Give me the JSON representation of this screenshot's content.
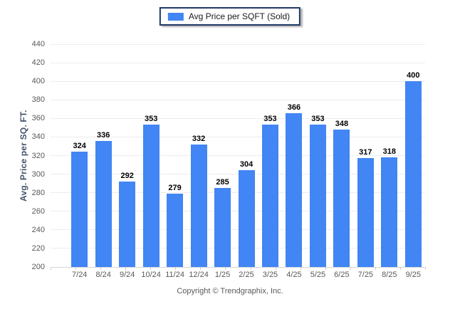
{
  "legend": {
    "label": "Avg Price per SQFT (Sold)",
    "swatch_color": "#4285f4"
  },
  "footer": {
    "copyright": "Copyright © Trendgraphix, Inc."
  },
  "colors": {
    "bar": "#4285f4",
    "grid": "#ececec",
    "axis_line": "#d6d6d6",
    "tick_mark": "#cccccc",
    "tick_text": "#595959",
    "value_text": "#000000",
    "axis_title": "#44546a",
    "legend_border": "#1f3864",
    "footer_text": "#595959"
  },
  "chart_data": {
    "type": "bar",
    "title": "Avg Price per SQFT (Sold)",
    "categories": [
      "7/24",
      "8/24",
      "9/24",
      "10/24",
      "11/24",
      "12/24",
      "1/25",
      "2/25",
      "3/25",
      "4/25",
      "5/25",
      "6/25",
      "7/25",
      "8/25",
      "9/25"
    ],
    "values": [
      324,
      336,
      292,
      353,
      279,
      332,
      285,
      304,
      353,
      366,
      353,
      348,
      317,
      318,
      400
    ],
    "xlabel": "",
    "ylabel": "Avg. Price per SQ. FT.",
    "ylim": [
      200,
      440
    ],
    "ytick_step": 20,
    "grid": "horizontal",
    "legend_position": "top-center",
    "data_labels": "above-bars"
  }
}
